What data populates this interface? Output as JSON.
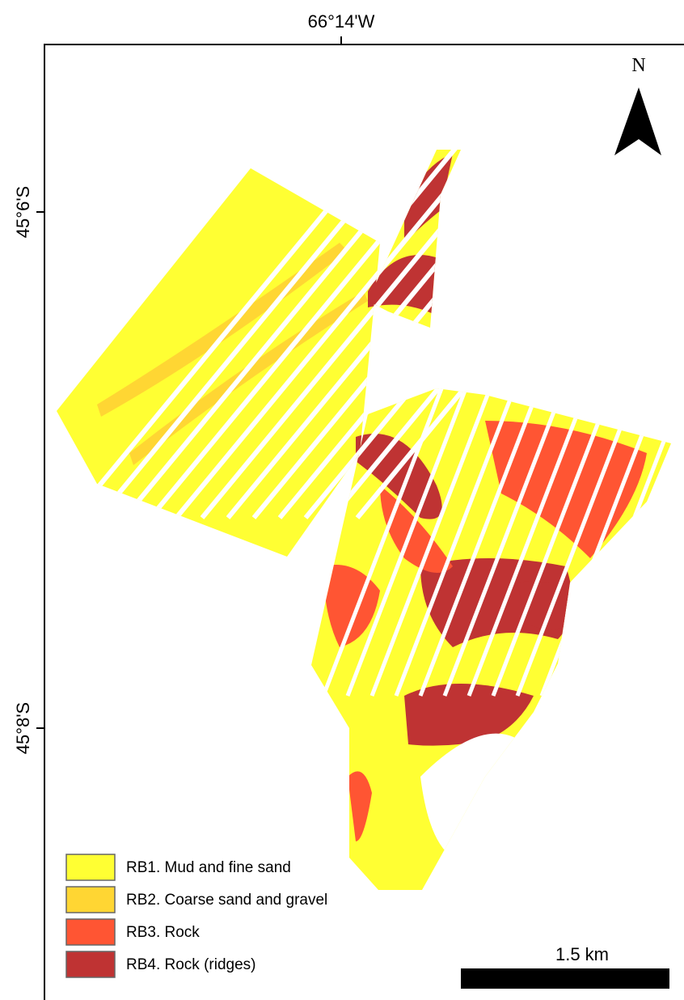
{
  "axes": {
    "top_label": "66°14'W",
    "left_labels": [
      "45°6'S",
      "45°8'S"
    ]
  },
  "north_arrow": "N",
  "legend": [
    {
      "label": "RB1. Mud and fine sand",
      "color": "#ffff33"
    },
    {
      "label": "RB2. Coarse sand and gravel",
      "color": "#ffd633"
    },
    {
      "label": "RB3. Rock",
      "color": "#ff5533"
    },
    {
      "label": "RB4. Rock (ridges)",
      "color": "#bf3333"
    }
  ],
  "scale_bar": "1.5 km"
}
